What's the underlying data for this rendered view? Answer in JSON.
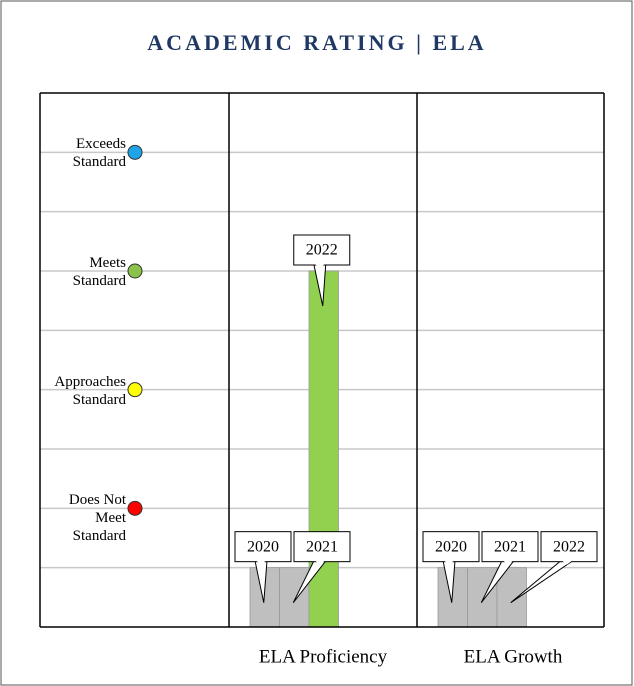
{
  "chart_data": {
    "type": "bar",
    "title": "ACADEMIC RATING | ELA",
    "categories": [
      "ELA Proficiency",
      "ELA Growth"
    ],
    "series": [
      {
        "name": "2020",
        "colors": [
          "#bfbfbf",
          "#bfbfbf"
        ],
        "values": [
          1,
          1
        ]
      },
      {
        "name": "2021",
        "colors": [
          "#bfbfbf",
          "#bfbfbf"
        ],
        "values": [
          1,
          1
        ]
      },
      {
        "name": "2022",
        "colors": [
          "#92d050",
          "#bfbfbf"
        ],
        "values": [
          6,
          1
        ]
      }
    ],
    "ylim": [
      0,
      9
    ],
    "yticks": [
      {
        "value": 8,
        "label": "Exceeds Standard",
        "color": "#1ea5e9"
      },
      {
        "value": 6,
        "label": "Meets Standard",
        "color": "#8bc34a"
      },
      {
        "value": 4,
        "label": "Approaches Standard",
        "color": "#ffff00"
      },
      {
        "value": 2,
        "label": "Does Not Meet Standard",
        "color": "#ff0000"
      }
    ],
    "minor_yticks": [
      1,
      3,
      5,
      7
    ],
    "grid": true
  }
}
